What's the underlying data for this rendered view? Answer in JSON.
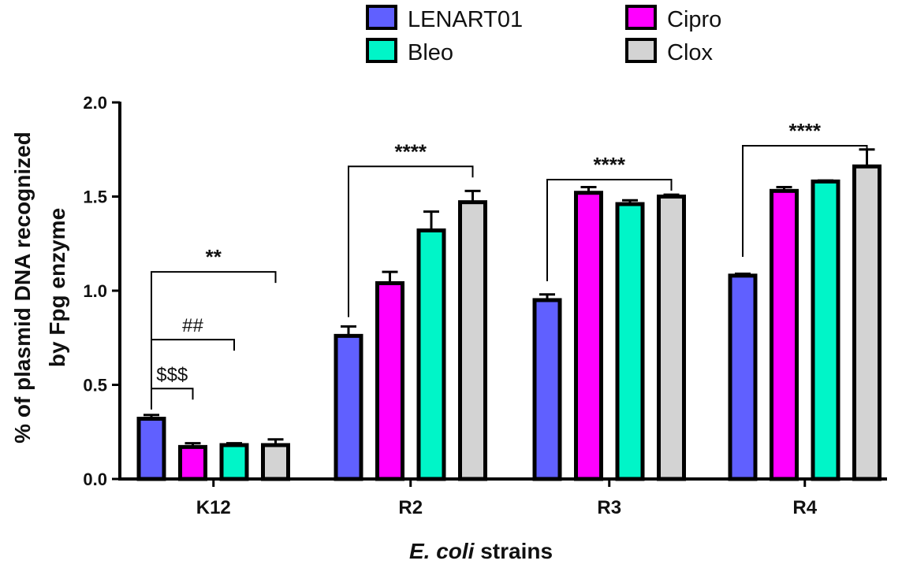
{
  "chart_data": {
    "type": "bar",
    "title": "",
    "xlabel_italic": "E. coli",
    "xlabel_rest": " strains",
    "ylabel_lines": [
      "% of plasmid DNA recognized",
      "by Fpg enzyme"
    ],
    "ylim": [
      0,
      2.0
    ],
    "yticks": [
      "0.0",
      "0.5",
      "1.0",
      "1.5",
      "2.0"
    ],
    "ytick_values": [
      0,
      0.5,
      1.0,
      1.5,
      2.0
    ],
    "categories": [
      "K12",
      "R2",
      "R3",
      "R4"
    ],
    "legend_position": "top-center",
    "series": [
      {
        "name": "LENART01",
        "color": "#6060ff",
        "values": [
          0.32,
          0.76,
          0.95,
          1.08
        ],
        "errors": [
          0.02,
          0.05,
          0.03,
          0.01
        ]
      },
      {
        "name": "Cipro",
        "color": "#ff00ff",
        "values": [
          0.17,
          1.04,
          1.52,
          1.53
        ],
        "errors": [
          0.02,
          0.06,
          0.03,
          0.02
        ]
      },
      {
        "name": "Bleo",
        "color": "#00f5c8",
        "values": [
          0.18,
          1.32,
          1.46,
          1.58
        ],
        "errors": [
          0.01,
          0.1,
          0.02,
          0.005
        ]
      },
      {
        "name": "Clox",
        "color": "#d3d3d3",
        "values": [
          0.18,
          1.47,
          1.5,
          1.66
        ],
        "errors": [
          0.03,
          0.06,
          0.01,
          0.09
        ]
      }
    ],
    "annotations": [
      {
        "label": "$$$",
        "category": 0,
        "from_series": 0,
        "to_series": 1,
        "level": 0.48,
        "style": "thin"
      },
      {
        "label": "##",
        "category": 0,
        "from_series": 0,
        "to_series": 2,
        "level": 0.74,
        "style": "thin"
      },
      {
        "label": "**",
        "category": 0,
        "from_series": 0,
        "to_series": 3,
        "level": 1.1,
        "style": "bold"
      },
      {
        "label": "****",
        "category": 1,
        "from_series": 0,
        "to_series": 3,
        "level": 1.66,
        "style": "bold"
      },
      {
        "label": "****",
        "category": 2,
        "from_series": 0,
        "to_series": 3,
        "level": 1.59,
        "style": "bold"
      },
      {
        "label": "****",
        "category": 3,
        "from_series": 0,
        "to_series": 3,
        "level": 1.77,
        "style": "bold"
      }
    ]
  }
}
